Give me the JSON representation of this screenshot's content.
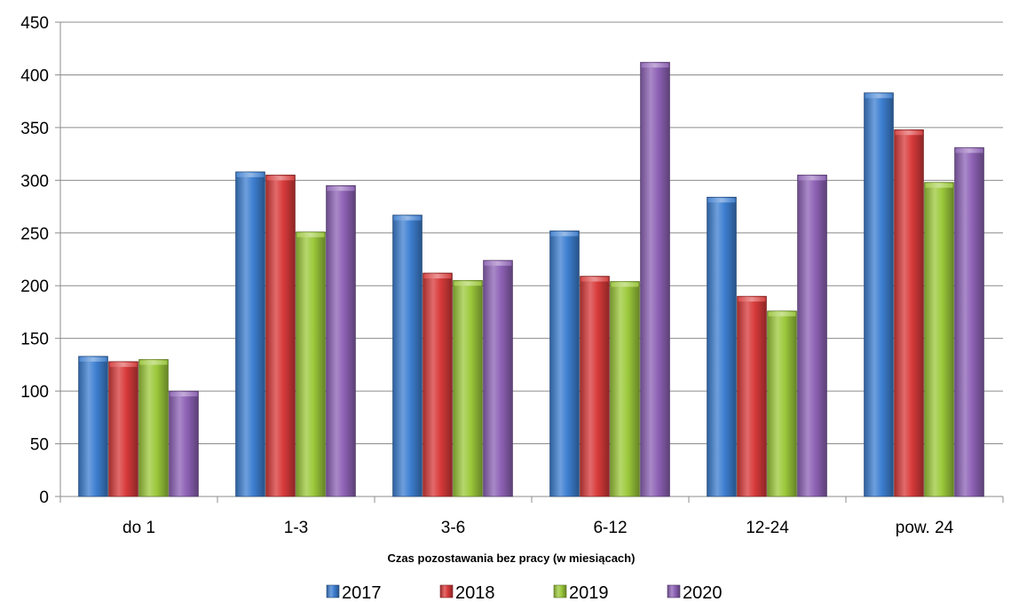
{
  "chart_data": {
    "type": "bar",
    "categories": [
      "do 1",
      "1-3",
      "3-6",
      "6-12",
      "12-24",
      "pow. 24"
    ],
    "series": [
      {
        "name": "2017",
        "color": "#3d7fd1",
        "values": [
          133,
          308,
          267,
          252,
          284,
          383
        ]
      },
      {
        "name": "2018",
        "color": "#d83a3a",
        "values": [
          128,
          305,
          212,
          209,
          190,
          348
        ]
      },
      {
        "name": "2019",
        "color": "#9cc93b",
        "values": [
          130,
          251,
          205,
          204,
          176,
          298
        ]
      },
      {
        "name": "2020",
        "color": "#8e62b6",
        "values": [
          100,
          295,
          224,
          412,
          305,
          331
        ]
      }
    ],
    "xlabel": "Czas pozostawania bez pracy (w miesiącach)",
    "ylabel": "",
    "ylim": [
      0,
      450
    ],
    "yticks": [
      "0",
      "50",
      "100",
      "150",
      "200",
      "250",
      "300",
      "350",
      "400",
      "450"
    ],
    "grid": true,
    "legend_position": "bottom"
  }
}
